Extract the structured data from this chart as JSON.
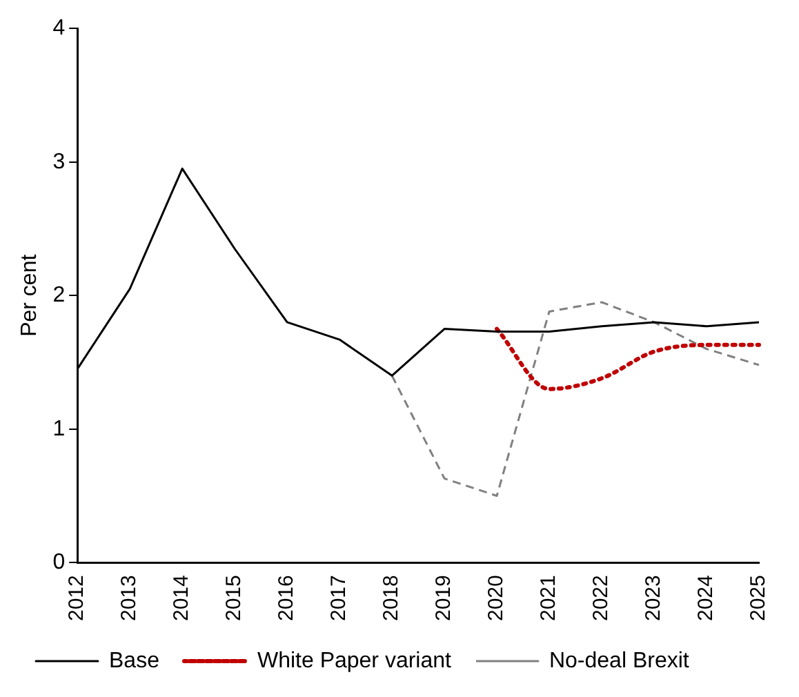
{
  "chart_data": {
    "type": "line",
    "ylabel": "Per cent",
    "categories": [
      "2012",
      "2013",
      "2014",
      "2015",
      "2016",
      "2017",
      "2018",
      "2019",
      "2020",
      "2021",
      "2022",
      "2023",
      "2024",
      "2025"
    ],
    "ylim": [
      0,
      4
    ],
    "yticks": [
      0,
      1,
      2,
      3,
      4
    ],
    "grid": false,
    "legend": "bottom",
    "marker": "none",
    "series": [
      {
        "name": "Base",
        "color": "#000000",
        "line_style": "solid",
        "values": [
          1.45,
          2.05,
          2.95,
          2.35,
          1.8,
          1.67,
          1.4,
          1.75,
          1.73,
          1.73,
          1.77,
          1.8,
          1.77,
          1.8
        ]
      },
      {
        "name": "White Paper variant",
        "color": "#c00000",
        "line_style": "dotted",
        "values": [
          null,
          null,
          null,
          null,
          null,
          null,
          null,
          null,
          1.75,
          1.3,
          1.38,
          1.58,
          1.63,
          1.63
        ]
      },
      {
        "name": "No-deal Brexit",
        "color": "#808080",
        "line_style": "dashed",
        "values": [
          null,
          null,
          null,
          null,
          null,
          null,
          1.4,
          0.63,
          0.5,
          1.88,
          1.95,
          1.8,
          1.6,
          1.48
        ]
      }
    ]
  }
}
